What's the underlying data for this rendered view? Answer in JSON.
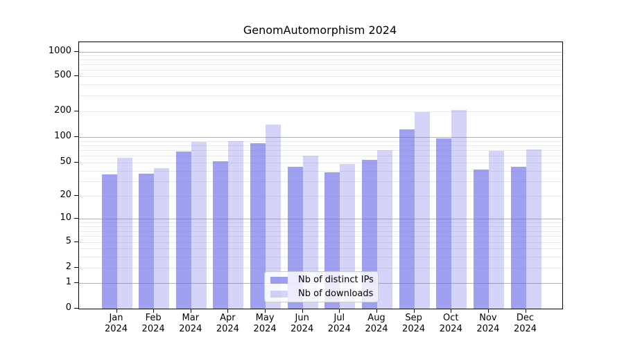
{
  "title": "GenomAutomorphism 2024",
  "colors": {
    "ips_bar": "rgba(102,102,230,0.62)",
    "downloads_bar": "rgba(102,102,230,0.28)",
    "grid_major": "#b3b3b3",
    "grid_minor": "#e9e9e9",
    "axis": "#000000"
  },
  "legend": {
    "entries": [
      {
        "label": "Nb of distinct IPs",
        "series_key": "ips"
      },
      {
        "label": "Nb of downloads",
        "series_key": "downloads"
      }
    ]
  },
  "chart_data": {
    "type": "bar",
    "title": "GenomAutomorphism 2024",
    "categories": [
      "Jan 2024",
      "Feb 2024",
      "Mar 2024",
      "Apr 2024",
      "May 2024",
      "Jun 2024",
      "Jul 2024",
      "Aug 2024",
      "Sep 2024",
      "Oct 2024",
      "Nov 2024",
      "Dec 2024"
    ],
    "series": [
      {
        "name": "Nb of distinct IPs",
        "key": "ips",
        "values": [
          36,
          37,
          67,
          52,
          85,
          45,
          38,
          54,
          123,
          96,
          41,
          45
        ]
      },
      {
        "name": "Nb of downloads",
        "key": "downloads",
        "values": [
          57,
          43,
          87,
          89,
          140,
          60,
          48,
          70,
          195,
          207,
          69,
          71
        ]
      }
    ],
    "xlabel": "",
    "ylabel": "",
    "yscale": "symlog",
    "yticks": [
      0,
      1,
      2,
      5,
      10,
      20,
      50,
      100,
      200,
      500,
      1000
    ],
    "ylim": [
      0,
      1300
    ],
    "grid": true,
    "minor_grid": true,
    "legend_position": "bottom-center"
  }
}
